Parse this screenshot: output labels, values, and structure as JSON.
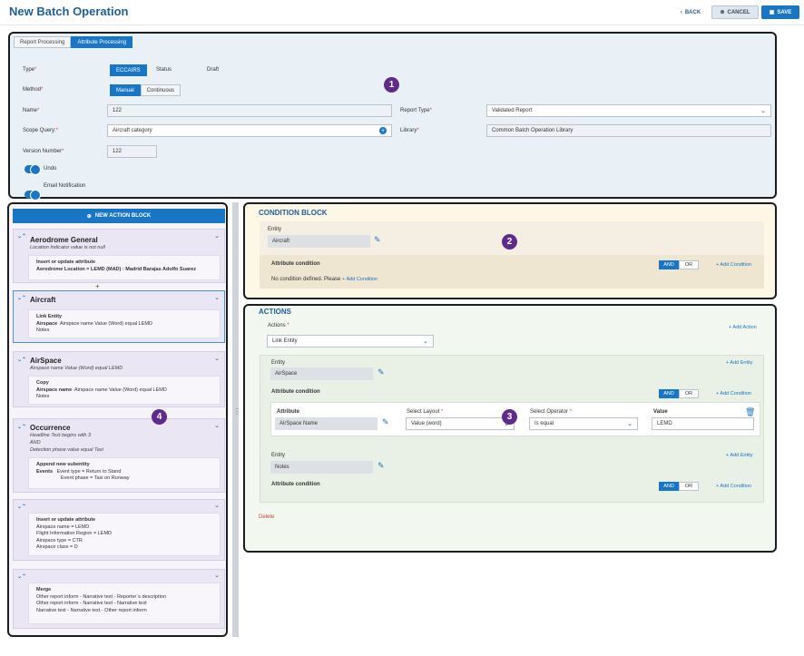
{
  "header": {
    "title": "New Batch Operation",
    "back": "BACK",
    "cancel": "CANCEL",
    "save": "SAVE"
  },
  "tabs": [
    "Report Processing",
    "Attribute Processing"
  ],
  "form": {
    "type_label": "Type",
    "type_value": "ECCAIRS",
    "status_label": "Status",
    "status_value": "Draft",
    "method_label": "Method",
    "method_options": [
      "Manual",
      "Continuous"
    ],
    "name_label": "Name",
    "name_value": "122",
    "report_type_label": "Report Type",
    "report_type_value": "Validated Report",
    "scope_label": "Scope Query:",
    "scope_value": "Aircraft category",
    "library_label": "Library",
    "library_value": "Common Batch Operation Library",
    "version_label": "Version Number",
    "version_value": "122",
    "undo_label": "Undo",
    "email_label": "Email Notification"
  },
  "badges": [
    "1",
    "2",
    "3",
    "4"
  ],
  "action_blocks": {
    "new_label": "NEW ACTION BLOCK",
    "b1": {
      "title": "Aerodrome General",
      "sub": "Location Indicator value is not null",
      "op": "Insert or update attribute",
      "lines": [
        "Aerodrome Location = LEMD (MAD) : Madrid Barajas Adolfo Suarez"
      ]
    },
    "b2": {
      "title": "Aircraft",
      "op": "Link Entity",
      "lines": [
        "Airspace",
        "Airspace name Value (Word) equal LEMD",
        "Notes"
      ]
    },
    "b3": {
      "title": "AirSpace",
      "sub": "Airspace name Value (Word) equal LEMD",
      "op": "Copy",
      "lines": [
        "Airspace name",
        "Airspace name Value (Word) equal LEMD",
        "Notes"
      ]
    },
    "b4": {
      "title": "Occurrence",
      "sub1": "Headline Text begins with 3",
      "sub2": "AND",
      "sub3": "Detection phase value equal Taxi",
      "op": "Append new subentity",
      "lines": [
        "Events",
        "Event type = Return to Stand",
        "Event phase = Taxi on Runway"
      ]
    },
    "b5": {
      "op": "Insert or update attribute",
      "lines": [
        "Airspace name = LEMD",
        "Flight Information Region = LEMD",
        "Airspace type = CTR",
        "Airspace class = D"
      ]
    },
    "b6": {
      "op": "Merge",
      "lines": [
        "Other report inform - Narrative text - Reporter´s description",
        "Other report inform - Narrative text - Narrative text",
        "Narrative text - Narrative text - Other report inform"
      ]
    }
  },
  "condition": {
    "title": "CONDITION BLOCK",
    "entity_label": "Entity",
    "entity_value": "Aircraft",
    "attr_label": "Attribute condition",
    "and": "AND",
    "or": "OR",
    "add_condition": "+ Add Condition",
    "empty_text": "No condition defined. Please",
    "empty_link": "+ Add Condition"
  },
  "actions": {
    "title": "ACTIONS",
    "actions_label": "Actions",
    "actions_value": "Link Entity",
    "add_action": "+ Add Action",
    "entity_label": "Entity",
    "add_entity": "+ Add Entity",
    "entity1": "AirSpace",
    "attr_label": "Attribute condition",
    "and": "AND",
    "or": "OR",
    "add_condition": "+ Add Condition",
    "attribute_label": "Attribute",
    "attribute_value": "AirSpace Name",
    "layout_label": "Select Layout",
    "layout_value": "Value (word)",
    "operator_label": "Select Operator",
    "operator_value": "Is equal",
    "value_label": "Value",
    "value_value": "LEMD",
    "entity2": "Notes",
    "delete": "Delete"
  }
}
